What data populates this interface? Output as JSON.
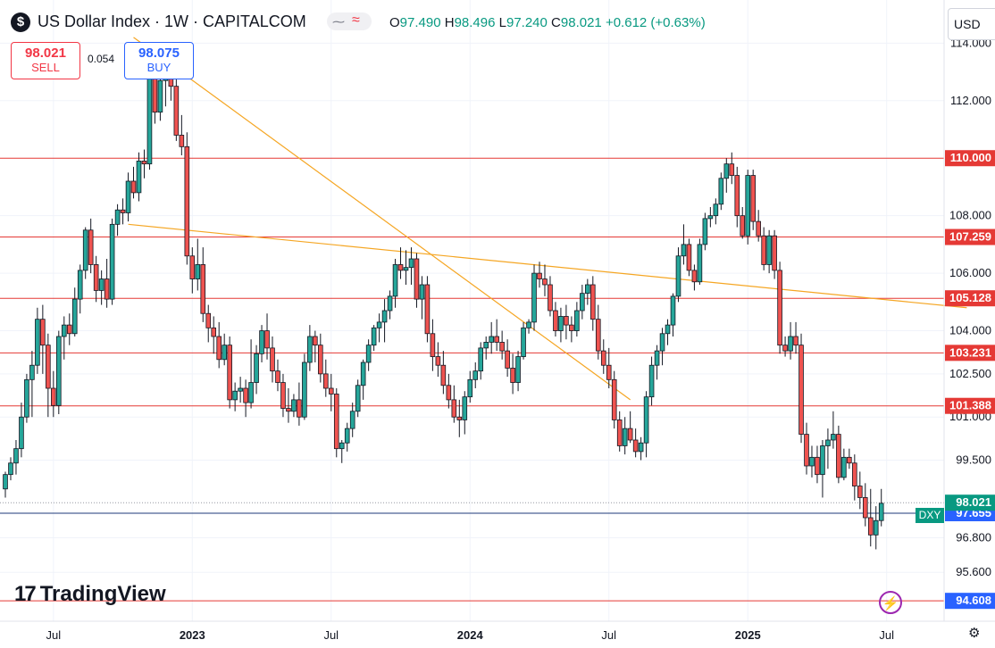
{
  "header": {
    "logo_glyph": "$",
    "title": "US Dollar Index · 1W · CAPITALCOM",
    "toggle_left": "⁓",
    "toggle_right": "≈",
    "o_label": "O",
    "o_value": "97.490",
    "h_label": "H",
    "h_value": "98.496",
    "l_label": "L",
    "l_value": "97.240",
    "c_label": "C",
    "c_value": "98.021",
    "change": "+0.612 (+0.63%)"
  },
  "trade": {
    "sell_price": "98.021",
    "sell_label": "SELL",
    "spread": "0.054",
    "buy_price": "98.075",
    "buy_label": "BUY"
  },
  "currency": "USD",
  "branding": {
    "logo_mark": "17",
    "name": "TradingView"
  },
  "icons": {
    "bolt": "⚡",
    "settings": "⚙"
  },
  "colors": {
    "up": "#089981",
    "down": "#f23645",
    "level": "#e53935",
    "trend": "#f5a623",
    "current": "#089981",
    "blue": "#2962ff"
  },
  "chart_data": {
    "type": "candlestick",
    "symbol": "DXY",
    "interval": "1W",
    "ylim": [
      93.9,
      115.5
    ],
    "y_ticks": [
      {
        "v": 114.0,
        "label": "114.000"
      },
      {
        "v": 112.0,
        "label": "112.000"
      },
      {
        "v": 108.0,
        "label": "108.000"
      },
      {
        "v": 106.0,
        "label": "106.000"
      },
      {
        "v": 104.0,
        "label": "104.000"
      },
      {
        "v": 102.5,
        "label": "102.500"
      },
      {
        "v": 101.0,
        "label": "101.000"
      },
      {
        "v": 99.5,
        "label": "99.500"
      },
      {
        "v": 96.8,
        "label": "96.800"
      },
      {
        "v": 95.6,
        "label": "95.600"
      }
    ],
    "x_ticks": [
      {
        "i": 9,
        "label": "Jul"
      },
      {
        "i": 35,
        "label": "2023"
      },
      {
        "i": 61,
        "label": "Jul"
      },
      {
        "i": 87,
        "label": "2024"
      },
      {
        "i": 113,
        "label": "Jul"
      },
      {
        "i": 139,
        "label": "2025"
      },
      {
        "i": 165,
        "label": "Jul"
      }
    ],
    "levels": [
      {
        "value": 110.0,
        "label": "110.000"
      },
      {
        "value": 107.259,
        "label": "107.259"
      },
      {
        "value": 105.128,
        "label": "105.128"
      },
      {
        "value": 103.231,
        "label": "103.231"
      },
      {
        "value": 101.388,
        "label": "101.388"
      },
      {
        "value": 94.608,
        "label": "94.608"
      }
    ],
    "current_price": {
      "value": 98.021,
      "label": "98.021",
      "tag": "DXY"
    },
    "blue_line": {
      "value": 97.655,
      "label": "97.655"
    },
    "trendlines": [
      {
        "from": {
          "i": 24,
          "v": 114.2
        },
        "to": {
          "i": 117,
          "v": 101.6
        }
      },
      {
        "from": {
          "i": 23,
          "v": 107.7
        },
        "to": {
          "i": 180,
          "v": 104.8
        }
      }
    ],
    "candles": [
      [
        98.5,
        99.1,
        98.2,
        99.0
      ],
      [
        99.0,
        99.6,
        98.8,
        99.4
      ],
      [
        99.4,
        100.2,
        99.0,
        99.9
      ],
      [
        99.9,
        101.5,
        99.6,
        101.0
      ],
      [
        101.0,
        102.5,
        100.8,
        102.3
      ],
      [
        102.3,
        103.3,
        101.0,
        102.8
      ],
      [
        102.8,
        104.8,
        102.5,
        104.4
      ],
      [
        104.4,
        104.9,
        102.5,
        103.5
      ],
      [
        103.5,
        103.9,
        101.0,
        102.0
      ],
      [
        102.0,
        102.6,
        101.0,
        101.4
      ],
      [
        101.4,
        104.0,
        101.1,
        103.8
      ],
      [
        103.8,
        104.5,
        103.0,
        104.2
      ],
      [
        104.2,
        104.6,
        103.5,
        103.9
      ],
      [
        103.9,
        105.5,
        103.8,
        105.1
      ],
      [
        105.1,
        106.3,
        104.6,
        106.1
      ],
      [
        106.1,
        107.6,
        105.8,
        107.5
      ],
      [
        107.5,
        107.9,
        106.0,
        106.3
      ],
      [
        106.3,
        106.6,
        105.0,
        105.4
      ],
      [
        105.4,
        106.1,
        104.9,
        105.8
      ],
      [
        105.8,
        106.5,
        104.8,
        105.1
      ],
      [
        105.1,
        107.9,
        104.9,
        107.7
      ],
      [
        107.7,
        108.4,
        107.3,
        108.2
      ],
      [
        108.2,
        108.6,
        107.7,
        108.1
      ],
      [
        108.1,
        109.5,
        107.8,
        109.2
      ],
      [
        109.2,
        109.7,
        108.6,
        108.8
      ],
      [
        108.8,
        110.2,
        108.5,
        109.9
      ],
      [
        109.9,
        110.3,
        109.3,
        109.8
      ],
      [
        109.8,
        113.0,
        109.6,
        112.9
      ],
      [
        112.9,
        113.9,
        111.2,
        111.6
      ],
      [
        111.6,
        112.9,
        111.3,
        112.7
      ],
      [
        112.7,
        113.6,
        111.8,
        113.2
      ],
      [
        113.2,
        113.9,
        112.0,
        112.5
      ],
      [
        112.5,
        112.9,
        110.6,
        110.8
      ],
      [
        110.8,
        111.5,
        110.1,
        110.4
      ],
      [
        110.4,
        110.9,
        106.3,
        106.6
      ],
      [
        106.6,
        106.9,
        105.3,
        105.8
      ],
      [
        105.8,
        107.2,
        105.4,
        106.3
      ],
      [
        106.3,
        106.9,
        104.3,
        104.6
      ],
      [
        104.6,
        104.9,
        103.6,
        104.1
      ],
      [
        104.1,
        104.5,
        103.2,
        103.8
      ],
      [
        103.8,
        104.3,
        102.7,
        103.0
      ],
      [
        103.0,
        103.9,
        102.8,
        103.5
      ],
      [
        103.5,
        103.8,
        101.3,
        101.6
      ],
      [
        101.6,
        102.2,
        101.2,
        101.9
      ],
      [
        101.9,
        102.4,
        101.5,
        102.0
      ],
      [
        102.0,
        102.3,
        101.0,
        101.5
      ],
      [
        101.5,
        103.7,
        101.3,
        102.2
      ],
      [
        102.2,
        103.5,
        101.8,
        103.2
      ],
      [
        103.2,
        104.2,
        102.9,
        104.0
      ],
      [
        104.0,
        104.6,
        103.0,
        103.4
      ],
      [
        103.4,
        103.8,
        102.2,
        102.6
      ],
      [
        102.6,
        103.0,
        101.9,
        102.2
      ],
      [
        102.2,
        102.5,
        101.0,
        101.3
      ],
      [
        101.3,
        102.0,
        100.8,
        101.2
      ],
      [
        101.2,
        101.8,
        101.0,
        101.6
      ],
      [
        101.6,
        102.2,
        100.7,
        101.0
      ],
      [
        101.0,
        103.2,
        100.9,
        102.9
      ],
      [
        102.9,
        104.2,
        102.6,
        103.8
      ],
      [
        103.8,
        104.0,
        102.9,
        103.5
      ],
      [
        103.5,
        103.9,
        102.2,
        102.5
      ],
      [
        102.5,
        103.0,
        101.7,
        102.0
      ],
      [
        102.0,
        102.5,
        101.2,
        101.8
      ],
      [
        101.8,
        102.0,
        99.6,
        99.9
      ],
      [
        99.9,
        100.2,
        99.4,
        100.1
      ],
      [
        100.1,
        100.8,
        99.8,
        100.6
      ],
      [
        100.6,
        101.5,
        100.3,
        101.2
      ],
      [
        101.2,
        102.3,
        101.0,
        102.1
      ],
      [
        102.1,
        103.0,
        101.6,
        102.9
      ],
      [
        102.9,
        103.7,
        102.6,
        103.5
      ],
      [
        103.5,
        104.2,
        103.3,
        104.1
      ],
      [
        104.1,
        104.6,
        103.6,
        104.3
      ],
      [
        104.3,
        105.1,
        103.6,
        104.7
      ],
      [
        104.7,
        105.4,
        104.4,
        105.2
      ],
      [
        105.2,
        106.5,
        104.8,
        106.3
      ],
      [
        106.3,
        106.9,
        105.8,
        106.1
      ],
      [
        106.1,
        106.8,
        105.6,
        106.2
      ],
      [
        106.2,
        106.9,
        105.6,
        106.5
      ],
      [
        106.5,
        106.7,
        104.8,
        105.1
      ],
      [
        105.1,
        105.9,
        104.4,
        105.6
      ],
      [
        105.6,
        105.9,
        103.6,
        103.9
      ],
      [
        103.9,
        104.4,
        102.6,
        103.1
      ],
      [
        103.1,
        103.6,
        102.4,
        102.8
      ],
      [
        102.8,
        103.3,
        101.8,
        102.1
      ],
      [
        102.1,
        102.5,
        101.3,
        101.6
      ],
      [
        101.6,
        102.1,
        100.8,
        101.0
      ],
      [
        101.0,
        101.6,
        100.3,
        100.9
      ],
      [
        100.9,
        101.9,
        100.4,
        101.7
      ],
      [
        101.7,
        102.6,
        101.5,
        102.3
      ],
      [
        102.3,
        102.9,
        102.0,
        102.6
      ],
      [
        102.6,
        103.6,
        102.3,
        103.4
      ],
      [
        103.4,
        103.8,
        103.0,
        103.6
      ],
      [
        103.6,
        104.3,
        103.2,
        103.8
      ],
      [
        103.8,
        104.4,
        103.3,
        103.6
      ],
      [
        103.6,
        104.0,
        103.0,
        103.3
      ],
      [
        103.3,
        103.7,
        102.4,
        102.7
      ],
      [
        102.7,
        103.2,
        101.8,
        102.2
      ],
      [
        102.2,
        103.3,
        101.9,
        103.1
      ],
      [
        103.1,
        104.3,
        103.0,
        104.1
      ],
      [
        104.1,
        104.4,
        103.9,
        104.3
      ],
      [
        104.3,
        106.3,
        104.0,
        106.0
      ],
      [
        106.0,
        106.4,
        105.5,
        105.8
      ],
      [
        105.8,
        106.3,
        105.2,
        105.6
      ],
      [
        105.6,
        105.9,
        104.5,
        104.7
      ],
      [
        104.7,
        105.0,
        103.8,
        104.0
      ],
      [
        104.0,
        104.8,
        103.6,
        104.5
      ],
      [
        104.5,
        104.9,
        103.7,
        104.2
      ],
      [
        104.2,
        104.5,
        103.6,
        104.0
      ],
      [
        104.0,
        105.0,
        103.8,
        104.7
      ],
      [
        104.7,
        105.6,
        104.4,
        105.3
      ],
      [
        105.3,
        105.8,
        104.9,
        105.6
      ],
      [
        105.6,
        105.9,
        104.0,
        104.4
      ],
      [
        104.4,
        104.9,
        103.0,
        103.3
      ],
      [
        103.3,
        103.7,
        102.5,
        102.8
      ],
      [
        102.8,
        103.4,
        102.0,
        102.3
      ],
      [
        102.3,
        102.6,
        100.6,
        100.9
      ],
      [
        100.9,
        101.2,
        99.8,
        100.0
      ],
      [
        100.0,
        101.0,
        99.7,
        100.6
      ],
      [
        100.6,
        101.2,
        100.1,
        100.2
      ],
      [
        100.2,
        100.6,
        99.6,
        99.8
      ],
      [
        99.8,
        100.3,
        99.5,
        100.1
      ],
      [
        100.1,
        101.9,
        99.6,
        101.7
      ],
      [
        101.7,
        103.1,
        101.4,
        102.8
      ],
      [
        102.8,
        103.5,
        102.3,
        103.3
      ],
      [
        103.3,
        104.1,
        102.8,
        103.9
      ],
      [
        103.9,
        104.4,
        103.5,
        104.2
      ],
      [
        104.2,
        105.3,
        103.8,
        105.2
      ],
      [
        105.2,
        106.9,
        105.0,
        106.6
      ],
      [
        106.6,
        107.7,
        106.3,
        107.0
      ],
      [
        107.0,
        107.2,
        105.9,
        106.1
      ],
      [
        106.1,
        106.3,
        105.4,
        105.7
      ],
      [
        105.7,
        107.2,
        105.6,
        107.0
      ],
      [
        107.0,
        108.1,
        106.8,
        107.9
      ],
      [
        107.9,
        108.3,
        107.6,
        108.0
      ],
      [
        108.0,
        108.6,
        107.7,
        108.4
      ],
      [
        108.4,
        109.5,
        108.2,
        109.3
      ],
      [
        109.3,
        110.0,
        108.8,
        109.8
      ],
      [
        109.8,
        110.2,
        109.1,
        109.4
      ],
      [
        109.4,
        109.7,
        107.6,
        108.0
      ],
      [
        108.0,
        108.3,
        107.2,
        107.3
      ],
      [
        107.3,
        109.6,
        107.0,
        109.4
      ],
      [
        109.4,
        109.6,
        107.5,
        107.8
      ],
      [
        107.8,
        108.2,
        107.1,
        107.3
      ],
      [
        107.3,
        107.6,
        106.1,
        106.3
      ],
      [
        106.3,
        107.5,
        106.0,
        107.3
      ],
      [
        107.3,
        107.5,
        105.8,
        106.1
      ],
      [
        106.1,
        106.4,
        103.2,
        103.5
      ],
      [
        103.5,
        103.8,
        103.1,
        103.3
      ],
      [
        103.3,
        104.3,
        103.0,
        103.8
      ],
      [
        103.8,
        104.3,
        103.2,
        103.5
      ],
      [
        103.5,
        103.9,
        100.1,
        100.4
      ],
      [
        100.4,
        100.8,
        99.0,
        99.3
      ],
      [
        99.3,
        100.0,
        98.9,
        99.6
      ],
      [
        99.6,
        100.0,
        98.7,
        99.0
      ],
      [
        99.0,
        100.2,
        98.2,
        100.0
      ],
      [
        100.0,
        100.6,
        99.2,
        100.2
      ],
      [
        100.2,
        101.2,
        99.9,
        100.4
      ],
      [
        100.4,
        100.7,
        98.7,
        98.9
      ],
      [
        98.9,
        99.9,
        98.8,
        99.6
      ],
      [
        99.6,
        99.9,
        99.2,
        99.4
      ],
      [
        99.4,
        99.7,
        98.1,
        98.6
      ],
      [
        98.6,
        99.1,
        97.8,
        98.2
      ],
      [
        98.2,
        98.7,
        97.2,
        97.5
      ],
      [
        97.5,
        98.5,
        96.5,
        96.9
      ],
      [
        96.9,
        97.9,
        96.4,
        97.4
      ],
      [
        97.4,
        98.5,
        97.2,
        98.0
      ]
    ]
  }
}
